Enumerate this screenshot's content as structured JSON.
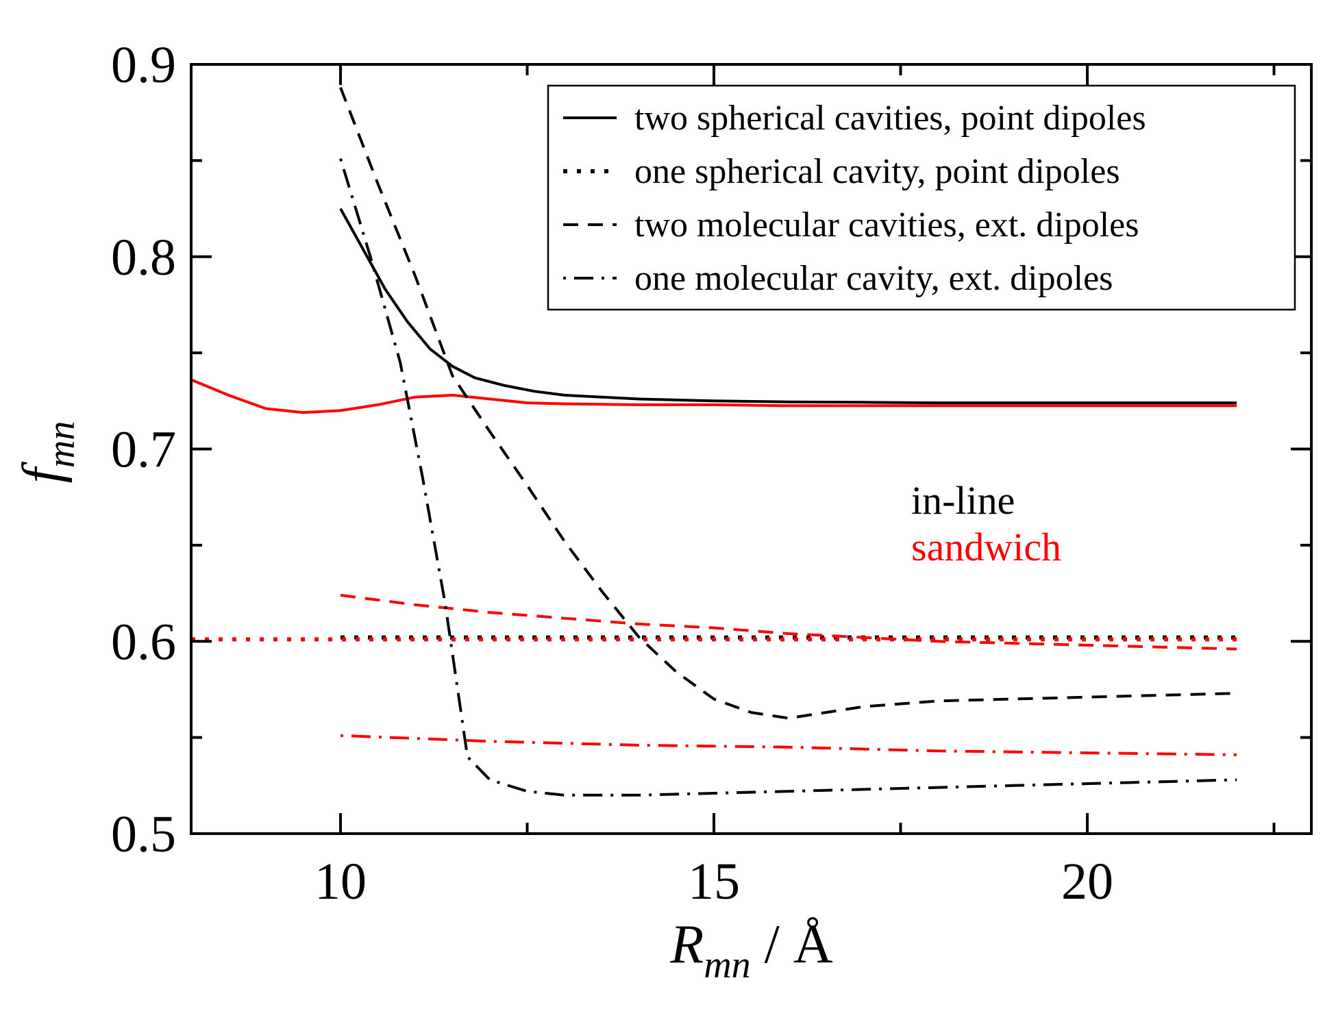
{
  "chart_data": {
    "type": "line",
    "title": "",
    "xlabel": {
      "main": "R",
      "sub": "mn",
      "suffix": " / Å"
    },
    "ylabel": {
      "main": "f",
      "sub": "mn"
    },
    "xlim": [
      8,
      23
    ],
    "ylim": [
      0.5,
      0.9
    ],
    "xticks": [
      10,
      15,
      20
    ],
    "xtick_labels": [
      "10",
      "15",
      "20"
    ],
    "xminor": [
      12.5,
      17.5,
      22.5
    ],
    "yticks": [
      0.5,
      0.6,
      0.7,
      0.8,
      0.9
    ],
    "ytick_labels": [
      "0.5",
      "0.6",
      "0.7",
      "0.8",
      "0.9"
    ],
    "yminor": [
      0.55,
      0.65,
      0.75,
      0.85
    ],
    "legend_position": "top-right",
    "legend": [
      {
        "label": "two spherical cavities, point dipoles",
        "style": "solid"
      },
      {
        "label": "one spherical cavity, point dipoles",
        "style": "dotted"
      },
      {
        "label": "two molecular cavities, ext. dipoles",
        "style": "dashed"
      },
      {
        "label": "one molecular cavity, ext. dipoles",
        "style": "dashdot"
      }
    ],
    "annotations": [
      {
        "text": "in-line",
        "color": "#000000"
      },
      {
        "text": "sandwich",
        "color": "#ff0000"
      }
    ],
    "series": [
      {
        "name": "two spherical cavities, point dipoles (in-line)",
        "color": "#000000",
        "style": "solid",
        "x": [
          10,
          10.3,
          10.6,
          10.9,
          11.2,
          11.5,
          11.8,
          12.2,
          12.6,
          13,
          13.5,
          14,
          15,
          16,
          17,
          18,
          19,
          20,
          21,
          22
        ],
        "y": [
          0.825,
          0.804,
          0.783,
          0.766,
          0.752,
          0.743,
          0.737,
          0.733,
          0.73,
          0.728,
          0.727,
          0.726,
          0.725,
          0.7245,
          0.7243,
          0.724,
          0.724,
          0.724,
          0.724,
          0.724
        ]
      },
      {
        "name": "two spherical cavities, point dipoles (sandwich)",
        "color": "#ff0000",
        "style": "solid",
        "x": [
          8,
          8.5,
          9,
          9.5,
          10,
          10.5,
          11,
          11.5,
          12,
          12.5,
          13,
          14,
          15,
          16,
          17,
          18,
          19,
          20,
          21,
          22
        ],
        "y": [
          0.736,
          0.728,
          0.721,
          0.719,
          0.72,
          0.723,
          0.727,
          0.728,
          0.726,
          0.724,
          0.7235,
          0.723,
          0.723,
          0.7225,
          0.7225,
          0.7225,
          0.7225,
          0.7225,
          0.7225,
          0.7225
        ]
      },
      {
        "name": "one spherical cavity, point dipoles (in-line)",
        "color": "#000000",
        "style": "dotted",
        "x": [
          10,
          12,
          14,
          16,
          18,
          20,
          22
        ],
        "y": [
          0.602,
          0.602,
          0.602,
          0.602,
          0.602,
          0.602,
          0.602
        ]
      },
      {
        "name": "one spherical cavity, point dipoles (sandwich)",
        "color": "#ff0000",
        "style": "dotted",
        "x": [
          8,
          10,
          12,
          14,
          16,
          18,
          20,
          22
        ],
        "y": [
          0.601,
          0.601,
          0.601,
          0.601,
          0.601,
          0.601,
          0.601,
          0.601
        ]
      },
      {
        "name": "two molecular cavities, ext. dipoles (in-line)",
        "color": "#000000",
        "style": "dashed",
        "x": [
          10,
          10.5,
          11,
          11.5,
          12,
          12.5,
          13,
          13.5,
          14,
          14.5,
          15,
          15.5,
          16,
          16.5,
          17,
          18,
          19,
          20,
          21,
          22
        ],
        "y": [
          0.888,
          0.838,
          0.79,
          0.738,
          0.709,
          0.681,
          0.652,
          0.626,
          0.602,
          0.584,
          0.57,
          0.563,
          0.56,
          0.563,
          0.566,
          0.569,
          0.57,
          0.571,
          0.572,
          0.573
        ]
      },
      {
        "name": "two molecular cavities, ext. dipoles (sandwich)",
        "color": "#ff0000",
        "style": "dashed",
        "x": [
          10,
          11,
          12,
          13,
          14,
          15,
          16,
          17,
          18,
          19,
          20,
          21,
          22
        ],
        "y": [
          0.624,
          0.619,
          0.615,
          0.612,
          0.609,
          0.607,
          0.604,
          0.602,
          0.6,
          0.599,
          0.598,
          0.597,
          0.596
        ]
      },
      {
        "name": "one molecular cavity, ext. dipoles (in-line)",
        "color": "#000000",
        "style": "dashdot",
        "x": [
          10,
          10.4,
          10.8,
          11.1,
          11.4,
          11.7,
          12,
          12.5,
          13,
          14,
          15,
          16,
          17,
          18,
          19,
          20,
          21,
          22
        ],
        "y": [
          0.851,
          0.8,
          0.745,
          0.685,
          0.62,
          0.54,
          0.528,
          0.522,
          0.52,
          0.52,
          0.521,
          0.522,
          0.523,
          0.524,
          0.525,
          0.526,
          0.527,
          0.528
        ]
      },
      {
        "name": "one molecular cavity, ext. dipoles (sandwich)",
        "color": "#ff0000",
        "style": "dashdot",
        "x": [
          10,
          12,
          14,
          16,
          18,
          20,
          22
        ],
        "y": [
          0.551,
          0.548,
          0.546,
          0.545,
          0.543,
          0.542,
          0.541
        ]
      }
    ]
  }
}
